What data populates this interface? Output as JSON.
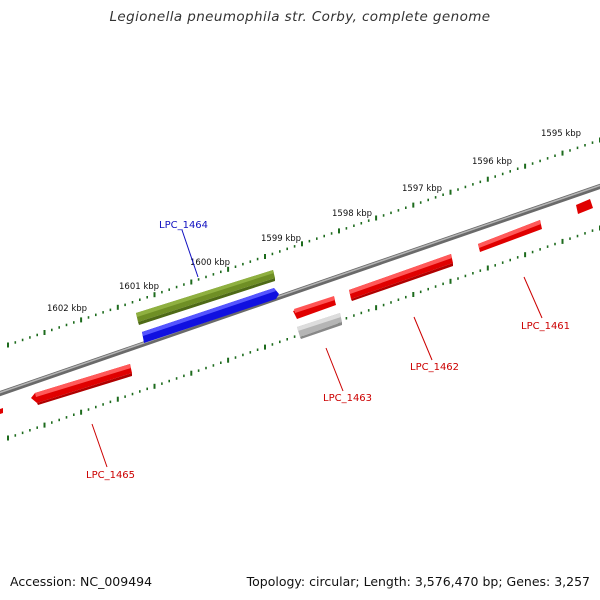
{
  "title": "Legionella pneumophila str. Corby, complete genome",
  "footer": {
    "accession": "Accession: NC_009494",
    "summary": "Topology: circular; Length: 3,576,470 bp; Genes: 3,257"
  },
  "ruler_labels": [
    "1595 kbp",
    "1596 kbp",
    "1597 kbp",
    "1598 kbp",
    "1599 kbp",
    "1600 kbp",
    "1601 kbp",
    "1602 kbp"
  ],
  "colors": {
    "backbone": "#7a7a7a",
    "tick": "#1d6b1d",
    "cds": "#e00000",
    "cds_label": "#cc0000",
    "rna": "#6f8f25",
    "rna_in": "#1010e0",
    "pseudo": "#b8b8b8",
    "blue_label": "#1010c0"
  },
  "genes": [
    {
      "label": "LPC_1461",
      "color": "cds"
    },
    {
      "label": "LPC_1462",
      "color": "cds"
    },
    {
      "label": "LPC_1463",
      "color": "cds"
    },
    {
      "label": "LPC_1464",
      "color": "blue"
    },
    {
      "label": "LPC_1465",
      "color": "cds"
    }
  ]
}
